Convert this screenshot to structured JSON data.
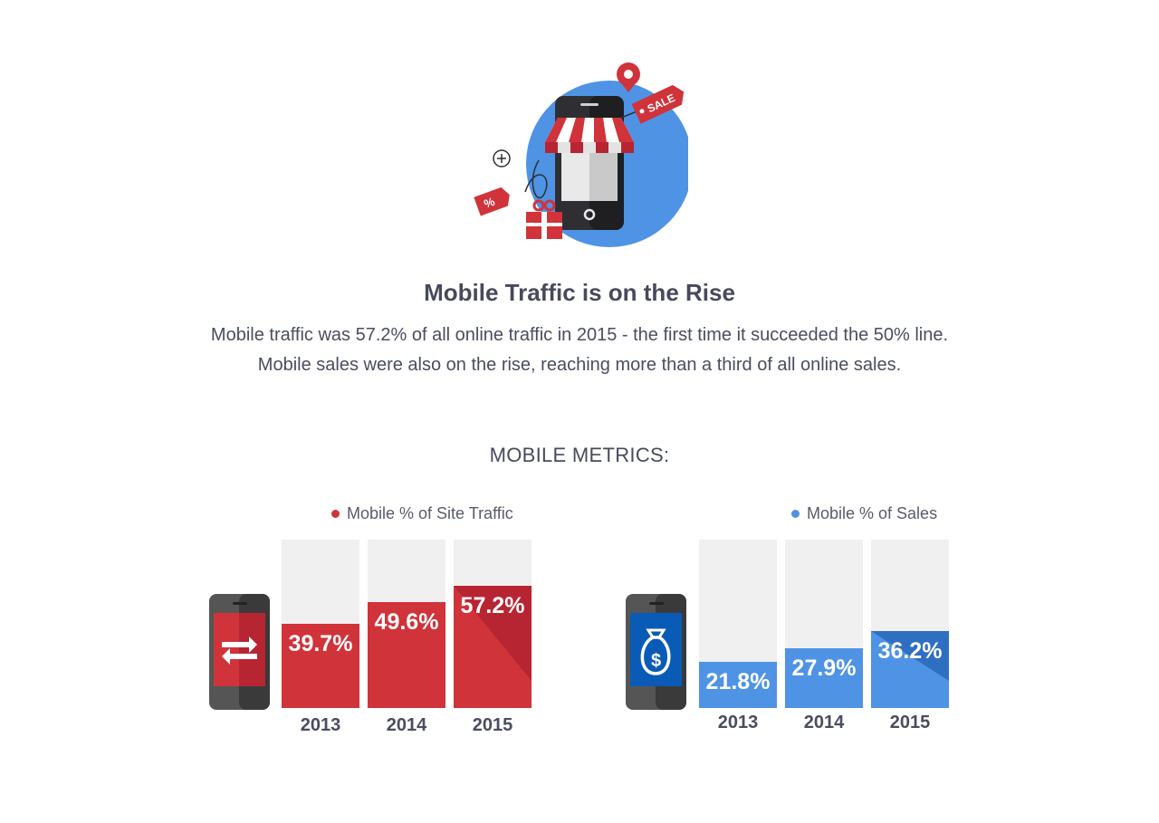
{
  "header": {
    "title": "Mobile Traffic is on the Rise",
    "desc_line1": "Mobile traffic was 57.2% of all online traffic in 2015 - the first time it succeeded the 50% line.",
    "desc_line2": "Mobile sales were also on the rise, reaching more than a third of all online sales.",
    "hero_tag_sale": "SALE",
    "hero_tag_percent": "%"
  },
  "section": {
    "title": "MOBILE METRICS:"
  },
  "colors": {
    "red": "#d0333a",
    "red_dark": "#b72533",
    "blue": "#4f93e4",
    "blue_dark": "#2f6fc2",
    "gray_bg": "#f0f0f0",
    "text": "#4a4d60"
  },
  "icons": {
    "traffic": "arrows-exchange-icon",
    "sales": "money-bag-icon",
    "hero": "mobile-shop-icon"
  },
  "chart_data": [
    {
      "type": "bar",
      "categories": [
        "2013",
        "2014",
        "2015"
      ],
      "series": [
        {
          "name": "Mobile % of Site Traffic",
          "values": [
            39.7,
            49.6,
            57.2
          ]
        }
      ],
      "value_labels": [
        "39.7%",
        "49.6%",
        "57.2%"
      ],
      "ylim": [
        0,
        79
      ],
      "grid": false,
      "legend": "top-right"
    },
    {
      "type": "bar",
      "categories": [
        "2013",
        "2014",
        "2015"
      ],
      "series": [
        {
          "name": "Mobile % of Sales",
          "values": [
            21.8,
            27.9,
            36.2
          ]
        }
      ],
      "value_labels": [
        "21.8%",
        "27.9%",
        "36.2%"
      ],
      "ylim": [
        0,
        79
      ],
      "grid": false,
      "legend": "top-right"
    }
  ]
}
